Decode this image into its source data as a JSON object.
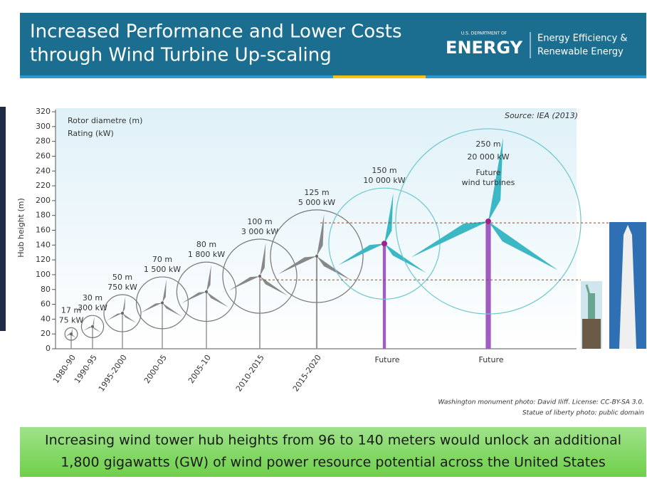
{
  "header": {
    "title_lines": [
      "Increased Performance and Lower Costs",
      "through Wind Turbine Up-scaling"
    ],
    "logo": {
      "small": "U.S. DEPARTMENT OF",
      "big": "ENERGY",
      "right_lines": [
        "Energy Efficiency &",
        "Renewable Energy"
      ]
    }
  },
  "figure": {
    "y_label": "Hub height (m)",
    "legend_lines": [
      "Rotor diametre (m)",
      "Rating (kW)"
    ],
    "source": "Source: IEA (2013)",
    "ylim": [
      0,
      320
    ],
    "yticks": [
      0,
      20,
      40,
      60,
      80,
      100,
      120,
      140,
      160,
      180,
      200,
      220,
      240,
      260,
      280,
      300,
      320
    ],
    "reference_heights": [
      93,
      170
    ],
    "turbines": [
      {
        "period": "1980-90",
        "hub_height": 20,
        "rotor_diameter": 17,
        "rotor_diameter_label": "17 m",
        "rating": "75 kW"
      },
      {
        "period": "1990-95",
        "hub_height": 30,
        "rotor_diameter": 30,
        "rotor_diameter_label": "30 m",
        "rating": "300 kW"
      },
      {
        "period": "1995-2000",
        "hub_height": 48,
        "rotor_diameter": 50,
        "rotor_diameter_label": "50 m",
        "rating": "750 kW"
      },
      {
        "period": "2000-05",
        "hub_height": 62,
        "rotor_diameter": 70,
        "rotor_diameter_label": "70 m",
        "rating": "1 500 kW"
      },
      {
        "period": "2005-10",
        "hub_height": 77,
        "rotor_diameter": 80,
        "rotor_diameter_label": "80 m",
        "rating": "1 800 kW"
      },
      {
        "period": "2010-2015",
        "hub_height": 98,
        "rotor_diameter": 100,
        "rotor_diameter_label": "100 m",
        "rating": "3 000 kW"
      },
      {
        "period": "2015-2020",
        "hub_height": 125,
        "rotor_diameter": 125,
        "rotor_diameter_label": "125 m",
        "rating": "5 000 kW"
      },
      {
        "period": "Future",
        "hub_height": 142,
        "rotor_diameter": 150,
        "rotor_diameter_label": "150 m",
        "rating": "10 000 kW"
      },
      {
        "period": "Future",
        "hub_height": 172,
        "rotor_diameter": 250,
        "rotor_diameter_label": "250 m",
        "rating": "20 000 kW",
        "note_lines": [
          "Future",
          "wind turbines"
        ]
      }
    ]
  },
  "credits": [
    "Washington monument photo: David Iliff. License: CC-BY-SA 3.0.",
    "Statue of liberty photo: public domain"
  ],
  "footer": {
    "lines": [
      "Increasing wind tower hub heights from 96 to 140 meters would unlock an additional",
      "1,800 gigawatts (GW) of wind power resource potential across the United States"
    ]
  }
}
